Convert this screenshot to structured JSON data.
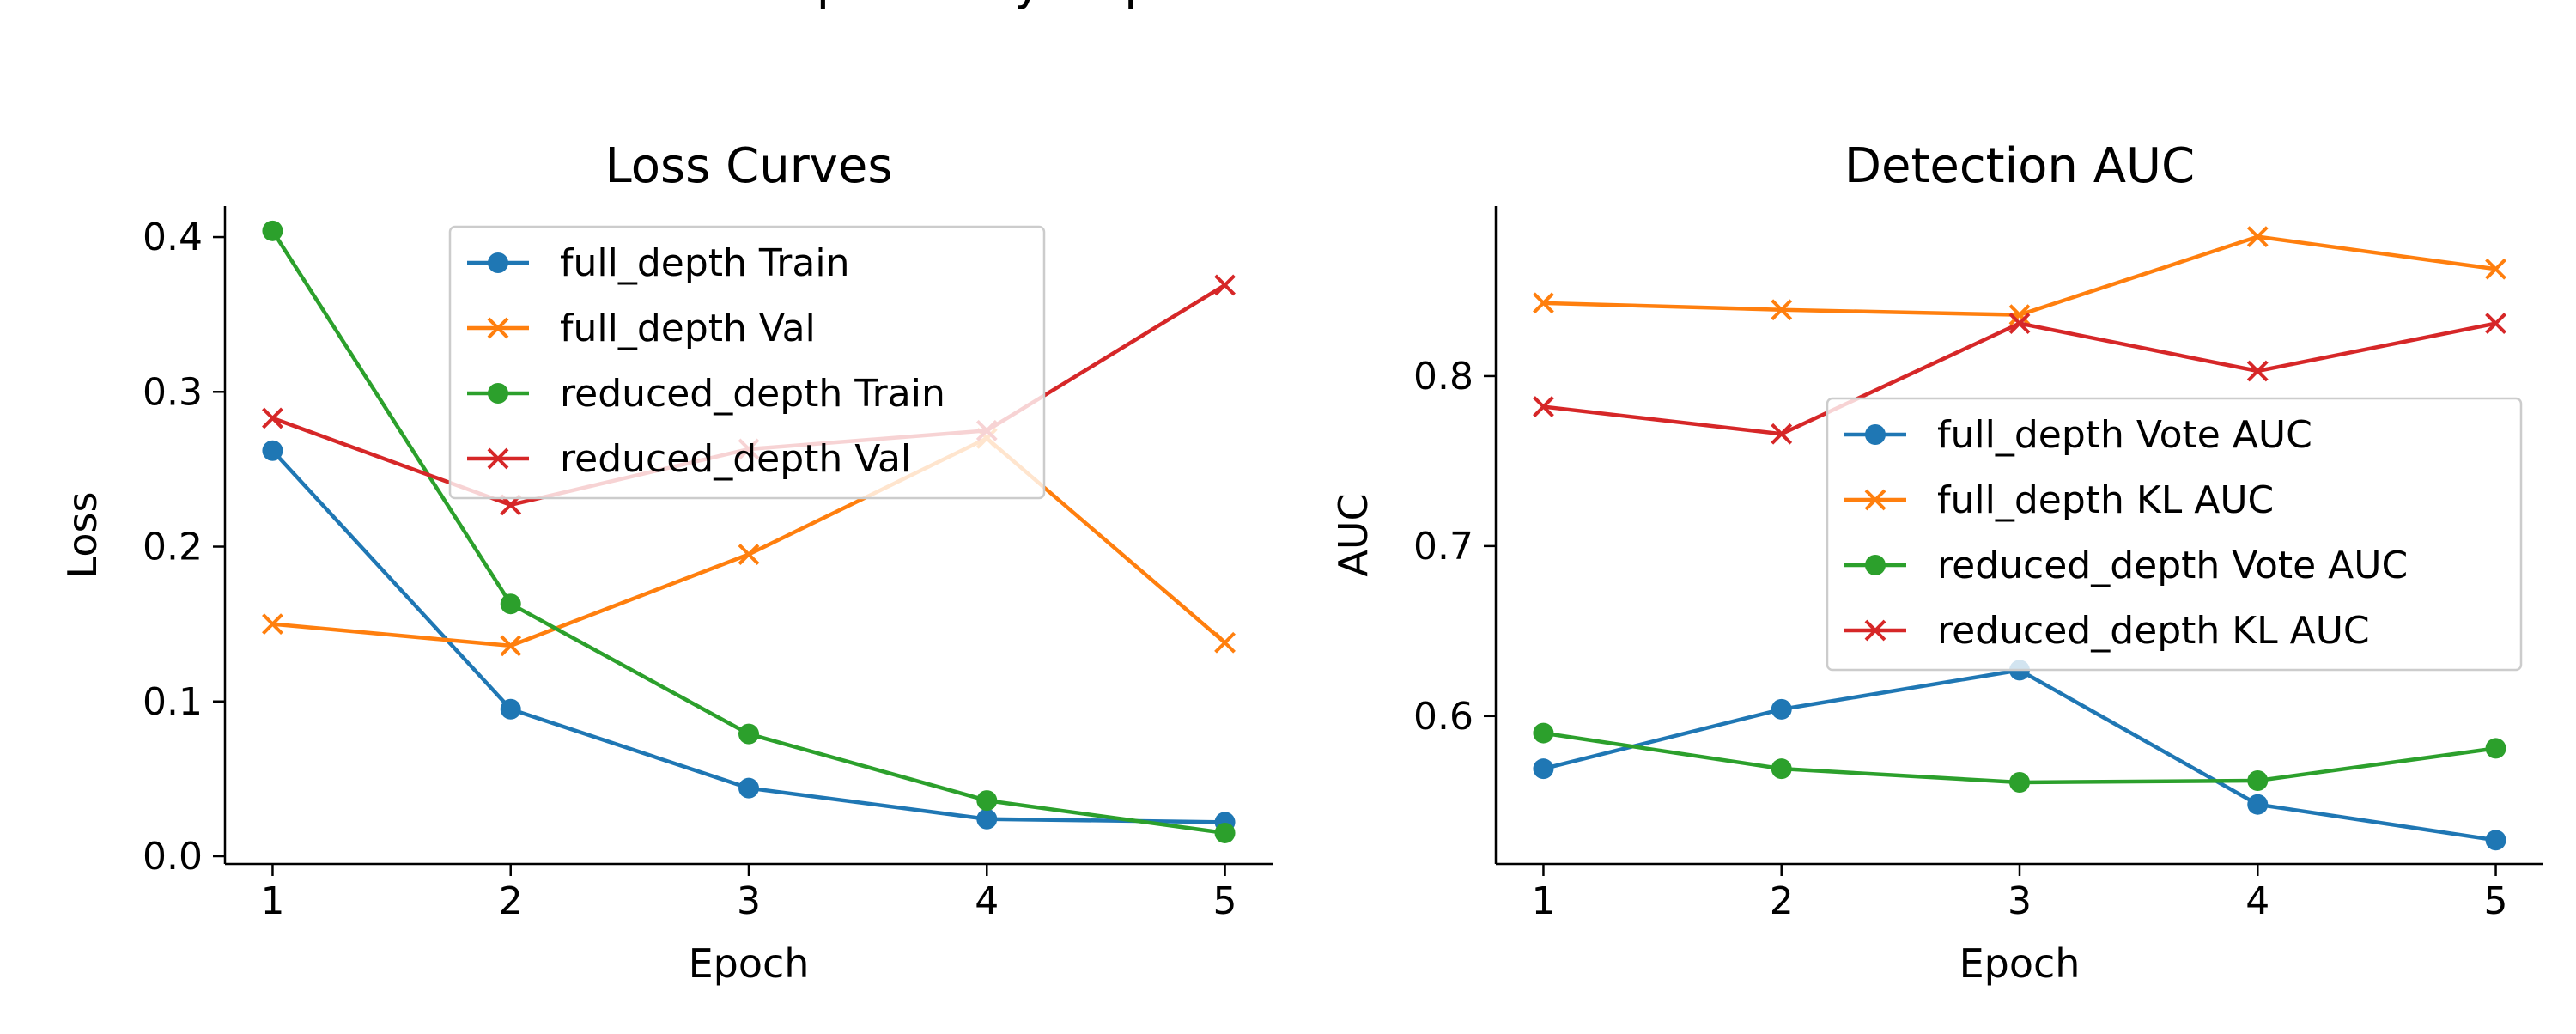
{
  "figure": {
    "title": "Telp Polarity Depth Ablation: Full vs Reduced"
  },
  "chart_data": [
    {
      "type": "line",
      "title": "Loss Curves",
      "xlabel": "Epoch",
      "ylabel": "Loss",
      "x": [
        1,
        2,
        3,
        4,
        5
      ],
      "xticks": [
        "1",
        "2",
        "3",
        "4",
        "5"
      ],
      "yticks": [
        "0.0",
        "0.1",
        "0.2",
        "0.3",
        "0.4"
      ],
      "xlim": [
        0.8,
        5.2
      ],
      "ylim": [
        -0.005,
        0.42
      ],
      "grid": false,
      "legend": "top-center",
      "series": [
        {
          "name": "full_depth Train",
          "values": [
            0.262,
            0.095,
            0.044,
            0.024,
            0.022
          ],
          "color": "#1f77b4",
          "marker": "circle"
        },
        {
          "name": "full_depth Val",
          "values": [
            0.15,
            0.136,
            0.195,
            0.27,
            0.138
          ],
          "color": "#ff7f0e",
          "marker": "x"
        },
        {
          "name": "reduced_depth Train",
          "values": [
            0.404,
            0.163,
            0.079,
            0.036,
            0.015
          ],
          "color": "#2ca02c",
          "marker": "circle"
        },
        {
          "name": "reduced_depth Val",
          "values": [
            0.283,
            0.227,
            0.263,
            0.275,
            0.369
          ],
          "color": "#d62728",
          "marker": "x"
        }
      ]
    },
    {
      "type": "line",
      "title": "Detection AUC",
      "xlabel": "Epoch",
      "ylabel": "AUC",
      "x": [
        1,
        2,
        3,
        4,
        5
      ],
      "xticks": [
        "1",
        "2",
        "3",
        "4",
        "5"
      ],
      "yticks": [
        "0.6",
        "0.7",
        "0.8"
      ],
      "xlim": [
        0.8,
        5.2
      ],
      "ylim": [
        0.513,
        0.9
      ],
      "grid": false,
      "legend": "center-right",
      "series": [
        {
          "name": "full_depth Vote AUC",
          "values": [
            0.569,
            0.604,
            0.627,
            0.548,
            0.527
          ],
          "color": "#1f77b4",
          "marker": "circle"
        },
        {
          "name": "full_depth KL AUC",
          "values": [
            0.843,
            0.839,
            0.836,
            0.882,
            0.863
          ],
          "color": "#ff7f0e",
          "marker": "x"
        },
        {
          "name": "reduced_depth Vote AUC",
          "values": [
            0.59,
            0.569,
            0.561,
            0.562,
            0.581
          ],
          "color": "#2ca02c",
          "marker": "circle"
        },
        {
          "name": "reduced_depth KL AUC",
          "values": [
            0.782,
            0.766,
            0.831,
            0.803,
            0.831
          ],
          "color": "#d62728",
          "marker": "x"
        }
      ]
    }
  ]
}
